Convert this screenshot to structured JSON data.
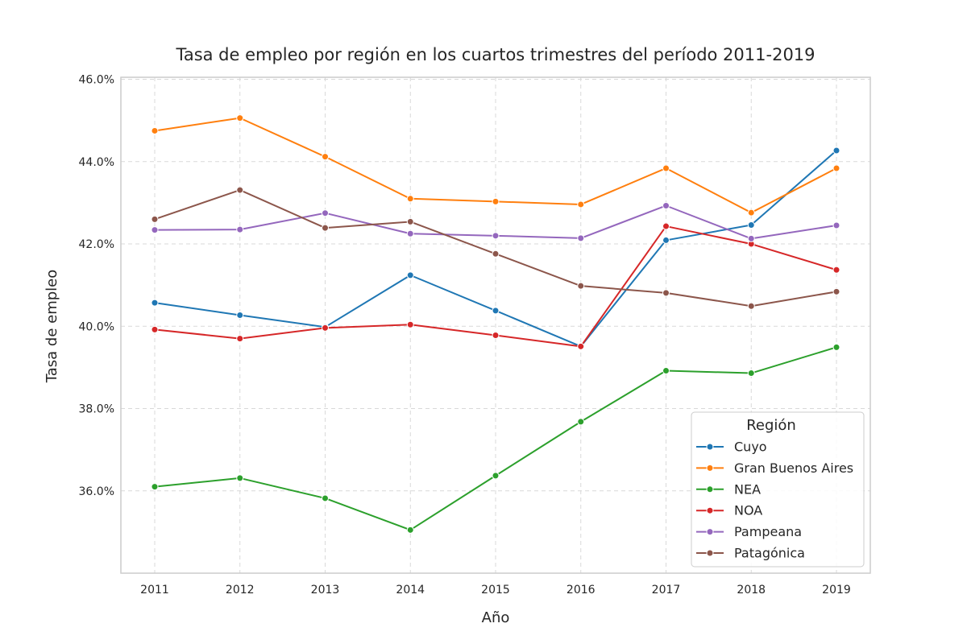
{
  "chart_data": {
    "type": "line",
    "title": "Tasa de empleo por región en los cuartos trimestres del período 2011-2019",
    "xlabel": "Año",
    "ylabel": "Tasa de empleo",
    "x": [
      "2011",
      "2012",
      "2013",
      "2014",
      "2015",
      "2016",
      "2017",
      "2018",
      "2019"
    ],
    "ylim": [
      34.0,
      46.05
    ],
    "yticks": [
      36.0,
      38.0,
      40.0,
      42.0,
      44.0,
      46.0
    ],
    "ytick_labels": [
      "36.0%",
      "38.0%",
      "40.0%",
      "42.0%",
      "44.0%",
      "46.0%"
    ],
    "grid": true,
    "legend": {
      "title": "Región",
      "placement": "lower-right"
    },
    "series": [
      {
        "name": "Cuyo",
        "color": "#1f77b4",
        "values": [
          40.57,
          40.27,
          39.98,
          41.24,
          40.38,
          39.51,
          42.09,
          42.46,
          44.27
        ]
      },
      {
        "name": "Gran Buenos Aires",
        "color": "#ff7f0e",
        "values": [
          44.75,
          45.06,
          44.12,
          43.1,
          43.03,
          42.96,
          43.84,
          42.76,
          43.84
        ]
      },
      {
        "name": "NEA",
        "color": "#2ca02c",
        "values": [
          36.1,
          36.31,
          35.82,
          35.05,
          36.37,
          37.68,
          38.92,
          38.86,
          39.49
        ]
      },
      {
        "name": "NOA",
        "color": "#d62728",
        "values": [
          39.92,
          39.7,
          39.96,
          40.04,
          39.78,
          39.51,
          42.43,
          42.0,
          41.37
        ]
      },
      {
        "name": "Pampeana",
        "color": "#9467bd",
        "values": [
          42.34,
          42.35,
          42.75,
          42.25,
          42.2,
          42.14,
          42.93,
          42.13,
          42.45
        ]
      },
      {
        "name": "Patagónica",
        "color": "#8c564b",
        "values": [
          42.6,
          43.31,
          42.39,
          42.54,
          41.76,
          40.98,
          40.81,
          40.49,
          40.84
        ]
      }
    ]
  }
}
